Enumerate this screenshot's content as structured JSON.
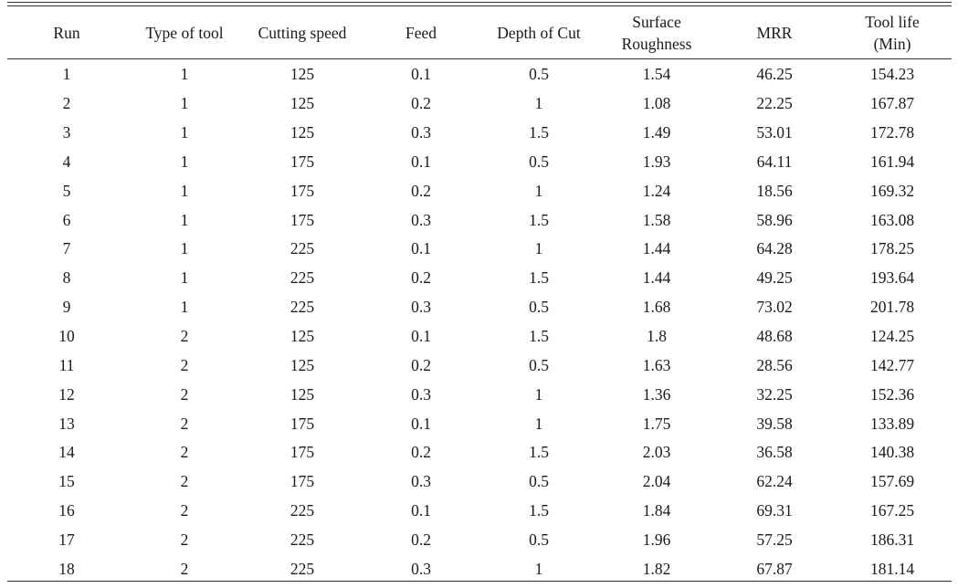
{
  "table": {
    "columns": [
      {
        "lines": [
          "Run"
        ]
      },
      {
        "lines": [
          "Type of tool"
        ]
      },
      {
        "lines": [
          "Cutting speed"
        ]
      },
      {
        "lines": [
          "Feed"
        ]
      },
      {
        "lines": [
          "Depth of Cut"
        ]
      },
      {
        "lines": [
          "Surface",
          "Roughness"
        ]
      },
      {
        "lines": [
          "MRR"
        ]
      },
      {
        "lines": [
          "Tool life",
          "(Min)"
        ]
      }
    ],
    "rows": [
      [
        "1",
        "1",
        "125",
        "0.1",
        "0.5",
        "1.54",
        "46.25",
        "154.23"
      ],
      [
        "2",
        "1",
        "125",
        "0.2",
        "1",
        "1.08",
        "22.25",
        "167.87"
      ],
      [
        "3",
        "1",
        "125",
        "0.3",
        "1.5",
        "1.49",
        "53.01",
        "172.78"
      ],
      [
        "4",
        "1",
        "175",
        "0.1",
        "0.5",
        "1.93",
        "64.11",
        "161.94"
      ],
      [
        "5",
        "1",
        "175",
        "0.2",
        "1",
        "1.24",
        "18.56",
        "169.32"
      ],
      [
        "6",
        "1",
        "175",
        "0.3",
        "1.5",
        "1.58",
        "58.96",
        "163.08"
      ],
      [
        "7",
        "1",
        "225",
        "0.1",
        "1",
        "1.44",
        "64.28",
        "178.25"
      ],
      [
        "8",
        "1",
        "225",
        "0.2",
        "1.5",
        "1.44",
        "49.25",
        "193.64"
      ],
      [
        "9",
        "1",
        "225",
        "0.3",
        "0.5",
        "1.68",
        "73.02",
        "201.78"
      ],
      [
        "10",
        "2",
        "125",
        "0.1",
        "1.5",
        "1.8",
        "48.68",
        "124.25"
      ],
      [
        "11",
        "2",
        "125",
        "0.2",
        "0.5",
        "1.63",
        "28.56",
        "142.77"
      ],
      [
        "12",
        "2",
        "125",
        "0.3",
        "1",
        "1.36",
        "32.25",
        "152.36"
      ],
      [
        "13",
        "2",
        "175",
        "0.1",
        "1",
        "1.75",
        "39.58",
        "133.89"
      ],
      [
        "14",
        "2",
        "175",
        "0.2",
        "1.5",
        "2.03",
        "36.58",
        "140.38"
      ],
      [
        "15",
        "2",
        "175",
        "0.3",
        "0.5",
        "2.04",
        "62.24",
        "157.69"
      ],
      [
        "16",
        "2",
        "225",
        "0.1",
        "1.5",
        "1.84",
        "69.31",
        "167.25"
      ],
      [
        "17",
        "2",
        "225",
        "0.2",
        "0.5",
        "1.96",
        "57.25",
        "186.31"
      ],
      [
        "18",
        "2",
        "225",
        "0.3",
        "1",
        "1.82",
        "67.87",
        "181.14"
      ]
    ]
  }
}
